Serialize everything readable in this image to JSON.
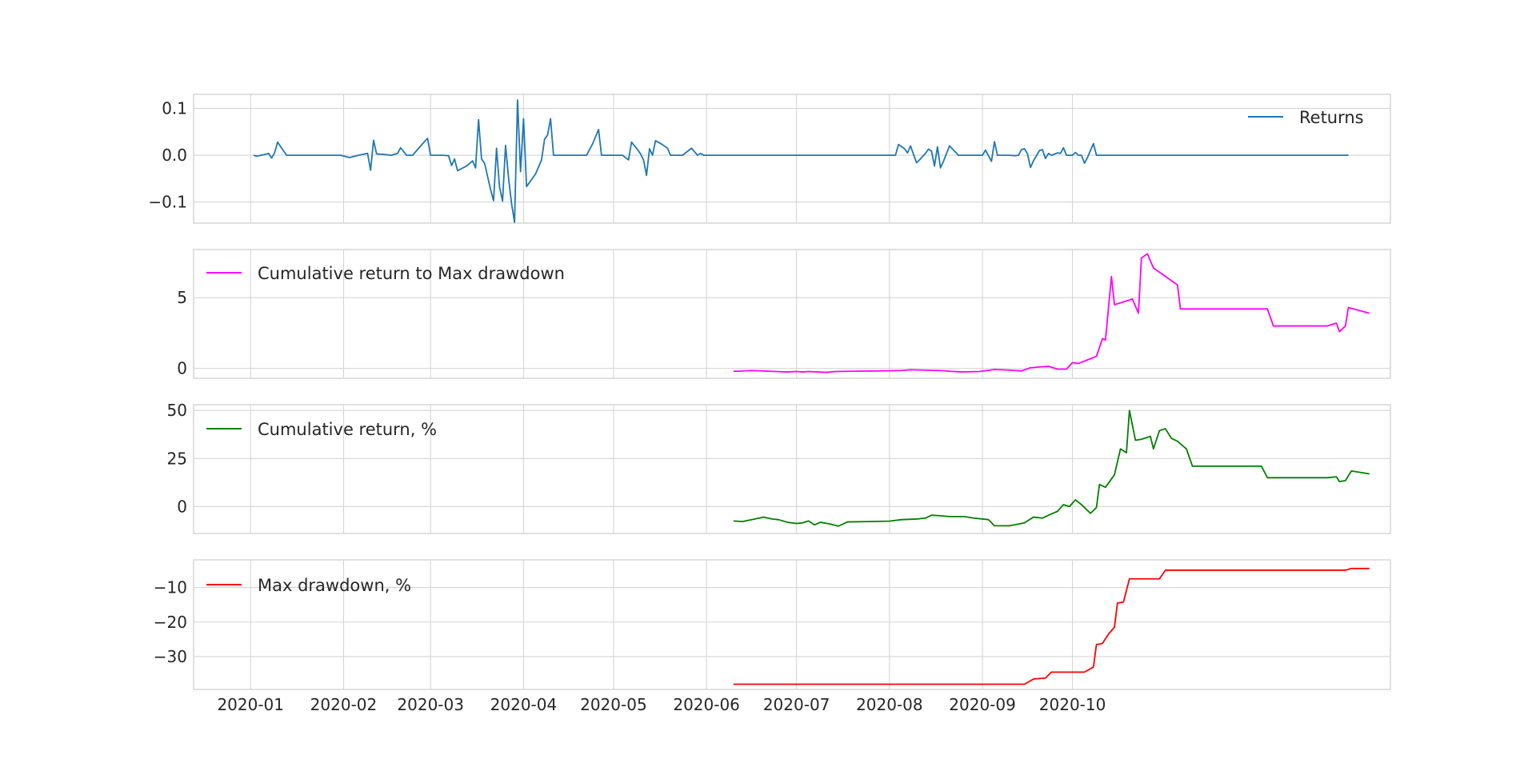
{
  "chart_data": [
    {
      "type": "line",
      "series": [
        {
          "name": "Returns",
          "color": "#1f77b4"
        }
      ],
      "legend": "upper-right",
      "ylim": [
        -0.145,
        0.13
      ],
      "yticks": [
        {
          "value": 0.1,
          "label": "0.1"
        },
        {
          "value": 0.0,
          "label": "0.0"
        },
        {
          "value": -0.1,
          "label": "−0.1"
        }
      ],
      "grid": true,
      "points": [
        [
          "2020-01-02",
          0
        ],
        [
          "2020-01-03",
          -0.002
        ],
        [
          "2020-01-06",
          0.002
        ],
        [
          "2020-01-07",
          0.004
        ],
        [
          "2020-01-08",
          -0.006
        ],
        [
          "2020-01-09",
          0.005
        ],
        [
          "2020-01-10",
          0.028
        ],
        [
          "2020-01-13",
          0
        ],
        [
          "2020-01-20",
          0
        ],
        [
          "2020-01-27",
          0
        ],
        [
          "2020-01-31",
          0
        ],
        [
          "2020-02-03",
          -0.005
        ],
        [
          "2020-02-06",
          0
        ],
        [
          "2020-02-09",
          0.004
        ],
        [
          "2020-02-10",
          -0.032
        ],
        [
          "2020-02-11",
          0.032
        ],
        [
          "2020-02-12",
          0.003
        ],
        [
          "2020-02-14",
          0.002
        ],
        [
          "2020-02-17",
          0
        ],
        [
          "2020-02-19",
          0.004
        ],
        [
          "2020-02-20",
          0.016
        ],
        [
          "2020-02-22",
          0
        ],
        [
          "2020-02-24",
          0
        ],
        [
          "2020-02-27",
          0.022
        ],
        [
          "2020-02-29",
          0.036
        ],
        [
          "2020-03-01",
          0
        ],
        [
          "2020-03-05",
          0
        ],
        [
          "2020-03-07",
          -0.001
        ],
        [
          "2020-03-08",
          -0.022
        ],
        [
          "2020-03-09",
          -0.008
        ],
        [
          "2020-03-10",
          -0.033
        ],
        [
          "2020-03-13",
          -0.023
        ],
        [
          "2020-03-15",
          -0.012
        ],
        [
          "2020-03-16",
          -0.027
        ],
        [
          "2020-03-17",
          0.076
        ],
        [
          "2020-03-18",
          -0.008
        ],
        [
          "2020-03-19",
          -0.017
        ],
        [
          "2020-03-20",
          -0.045
        ],
        [
          "2020-03-21",
          -0.073
        ],
        [
          "2020-03-22",
          -0.097
        ],
        [
          "2020-03-23",
          0.015
        ],
        [
          "2020-03-24",
          -0.068
        ],
        [
          "2020-03-25",
          -0.098
        ],
        [
          "2020-03-26",
          0.021
        ],
        [
          "2020-03-27",
          -0.048
        ],
        [
          "2020-03-28",
          -0.103
        ],
        [
          "2020-03-29",
          -0.143
        ],
        [
          "2020-03-30",
          0.118
        ],
        [
          "2020-03-31",
          -0.035
        ],
        [
          "2020-04-01",
          0.078
        ],
        [
          "2020-04-02",
          -0.067
        ],
        [
          "2020-04-05",
          -0.04
        ],
        [
          "2020-04-07",
          -0.01
        ],
        [
          "2020-04-08",
          0.034
        ],
        [
          "2020-04-09",
          0.043
        ],
        [
          "2020-04-10",
          0.078
        ],
        [
          "2020-04-11",
          0
        ],
        [
          "2020-04-15",
          0
        ],
        [
          "2020-04-20",
          0
        ],
        [
          "2020-04-22",
          0
        ],
        [
          "2020-04-24",
          0.024
        ],
        [
          "2020-04-26",
          0.055
        ],
        [
          "2020-04-27",
          0
        ],
        [
          "2020-05-04",
          0
        ],
        [
          "2020-05-06",
          -0.01
        ],
        [
          "2020-05-07",
          0.028
        ],
        [
          "2020-05-09",
          0.012
        ],
        [
          "2020-05-10",
          0.003
        ],
        [
          "2020-05-11",
          -0.01
        ],
        [
          "2020-05-12",
          -0.043
        ],
        [
          "2020-05-13",
          0.014
        ],
        [
          "2020-05-14",
          0
        ],
        [
          "2020-05-15",
          0.031
        ],
        [
          "2020-05-17",
          0.024
        ],
        [
          "2020-05-19",
          0.015
        ],
        [
          "2020-05-20",
          0
        ],
        [
          "2020-05-24",
          0
        ],
        [
          "2020-05-26",
          0.01
        ],
        [
          "2020-05-27",
          0.015
        ],
        [
          "2020-05-29",
          0
        ],
        [
          "2020-05-30",
          0.004
        ],
        [
          "2020-05-31",
          0
        ],
        [
          "2020-06-30",
          0
        ],
        [
          "2020-07-25",
          0
        ],
        [
          "2020-08-03",
          0
        ],
        [
          "2020-08-04",
          0.023
        ],
        [
          "2020-08-06",
          0.014
        ],
        [
          "2020-08-07",
          0.005
        ],
        [
          "2020-08-08",
          0.02
        ],
        [
          "2020-08-10",
          -0.016
        ],
        [
          "2020-08-11",
          -0.01
        ],
        [
          "2020-08-13",
          0.004
        ],
        [
          "2020-08-14",
          0.013
        ],
        [
          "2020-08-15",
          0.009
        ],
        [
          "2020-08-16",
          -0.023
        ],
        [
          "2020-08-17",
          0.018
        ],
        [
          "2020-08-18",
          -0.027
        ],
        [
          "2020-08-19",
          -0.013
        ],
        [
          "2020-08-21",
          0.02
        ],
        [
          "2020-08-24",
          0
        ],
        [
          "2020-08-29",
          0
        ],
        [
          "2020-09-01",
          0
        ],
        [
          "2020-09-02",
          0.011
        ],
        [
          "2020-09-04",
          -0.013
        ],
        [
          "2020-09-05",
          0.029
        ],
        [
          "2020-09-06",
          0
        ],
        [
          "2020-09-10",
          0
        ],
        [
          "2020-09-12",
          -0.001
        ],
        [
          "2020-09-13",
          0
        ],
        [
          "2020-09-14",
          0.012
        ],
        [
          "2020-09-15",
          0.014
        ],
        [
          "2020-09-16",
          0.003
        ],
        [
          "2020-09-17",
          -0.026
        ],
        [
          "2020-09-18",
          -0.012
        ],
        [
          "2020-09-20",
          0.01
        ],
        [
          "2020-09-21",
          0.012
        ],
        [
          "2020-09-22",
          -0.007
        ],
        [
          "2020-09-23",
          0.004
        ],
        [
          "2020-09-24",
          0
        ],
        [
          "2020-09-26",
          0.005
        ],
        [
          "2020-09-27",
          0.004
        ],
        [
          "2020-09-28",
          0.016
        ],
        [
          "2020-09-29",
          0
        ],
        [
          "2020-10-01",
          0
        ],
        [
          "2020-10-02",
          0.006
        ],
        [
          "2020-10-03",
          0
        ],
        [
          "2020-10-04",
          0
        ],
        [
          "2020-10-05",
          -0.017
        ],
        [
          "2020-10-06",
          -0.005
        ],
        [
          "2020-10-08",
          0.025
        ],
        [
          "2020-10-09",
          0
        ],
        [
          "2020-10-20",
          0
        ],
        [
          "2020-11-20",
          0
        ],
        [
          "2020-12-25",
          0
        ],
        [
          "2021-01-01",
          0
        ]
      ]
    },
    {
      "type": "line",
      "series": [
        {
          "name": "Cumulative return to Max drawdown",
          "color": "#ff00ff"
        }
      ],
      "legend": "upper-left",
      "ylim": [
        -0.7,
        8.4
      ],
      "yticks": [
        {
          "value": 5,
          "label": "5"
        },
        {
          "value": 0,
          "label": "0"
        }
      ],
      "grid": true,
      "points": [
        [
          "2020-06-10",
          -0.2
        ],
        [
          "2020-06-12",
          -0.2
        ],
        [
          "2020-06-16",
          -0.15
        ],
        [
          "2020-06-20",
          -0.18
        ],
        [
          "2020-06-24",
          -0.22
        ],
        [
          "2020-06-28",
          -0.25
        ],
        [
          "2020-07-01",
          -0.22
        ],
        [
          "2020-07-03",
          -0.25
        ],
        [
          "2020-07-05",
          -0.22
        ],
        [
          "2020-07-08",
          -0.25
        ],
        [
          "2020-07-11",
          -0.28
        ],
        [
          "2020-07-14",
          -0.22
        ],
        [
          "2020-07-20",
          -0.2
        ],
        [
          "2020-07-28",
          -0.18
        ],
        [
          "2020-08-05",
          -0.15
        ],
        [
          "2020-08-08",
          -0.1
        ],
        [
          "2020-08-12",
          -0.12
        ],
        [
          "2020-08-18",
          -0.15
        ],
        [
          "2020-08-21",
          -0.2
        ],
        [
          "2020-08-25",
          -0.25
        ],
        [
          "2020-08-31",
          -0.22
        ],
        [
          "2020-09-05",
          -0.08
        ],
        [
          "2020-09-10",
          -0.12
        ],
        [
          "2020-09-14",
          -0.18
        ],
        [
          "2020-09-17",
          0.05
        ],
        [
          "2020-09-20",
          0.1
        ],
        [
          "2020-09-23",
          0.15
        ],
        [
          "2020-09-26",
          -0.05
        ],
        [
          "2020-09-29",
          -0.05
        ],
        [
          "2020-10-01",
          0.4
        ],
        [
          "2020-10-03",
          0.35
        ],
        [
          "2020-10-06",
          0.6
        ],
        [
          "2020-10-09",
          0.85
        ],
        [
          "2020-10-11",
          2.1
        ],
        [
          "2020-10-12",
          2.0
        ],
        [
          "2020-10-14",
          6.5
        ],
        [
          "2020-10-15",
          4.5
        ],
        [
          "2020-10-18",
          4.7
        ],
        [
          "2020-10-21",
          4.9
        ],
        [
          "2020-10-23",
          3.9
        ],
        [
          "2020-10-24",
          7.8
        ],
        [
          "2020-10-26",
          8.1
        ],
        [
          "2020-10-28",
          7.1
        ],
        [
          "2020-11-01",
          6.5
        ],
        [
          "2020-11-05",
          5.9
        ],
        [
          "2020-11-06",
          4.2
        ],
        [
          "2020-11-10",
          4.2
        ],
        [
          "2020-11-30",
          4.2
        ],
        [
          "2020-12-05",
          4.2
        ],
        [
          "2020-12-07",
          3.0
        ],
        [
          "2020-12-15",
          3.0
        ],
        [
          "2020-12-25",
          3.0
        ],
        [
          "2020-12-28",
          3.2
        ],
        [
          "2020-12-29",
          2.6
        ],
        [
          "2020-12-31",
          3.0
        ],
        [
          "2021-01-01",
          4.3
        ],
        [
          "2021-01-08",
          3.9
        ]
      ]
    },
    {
      "type": "line",
      "series": [
        {
          "name": "Cumulative return, %",
          "color": "#008000"
        }
      ],
      "legend": "upper-left",
      "ylim": [
        -14,
        53
      ],
      "yticks": [
        {
          "value": 50,
          "label": "50"
        },
        {
          "value": 25,
          "label": "25"
        },
        {
          "value": 0,
          "label": "0"
        }
      ],
      "grid": true,
      "points": [
        [
          "2020-06-10",
          -7.5
        ],
        [
          "2020-06-13",
          -7.8
        ],
        [
          "2020-06-17",
          -6.5
        ],
        [
          "2020-06-20",
          -5.5
        ],
        [
          "2020-06-23",
          -6.5
        ],
        [
          "2020-06-25",
          -6.8
        ],
        [
          "2020-06-28",
          -8.2
        ],
        [
          "2020-07-01",
          -8.8
        ],
        [
          "2020-07-03",
          -8.5
        ],
        [
          "2020-07-05",
          -7.5
        ],
        [
          "2020-07-07",
          -9.5
        ],
        [
          "2020-07-09",
          -8.2
        ],
        [
          "2020-07-12",
          -9.0
        ],
        [
          "2020-07-15",
          -10.2
        ],
        [
          "2020-07-18",
          -8.0
        ],
        [
          "2020-07-25",
          -7.8
        ],
        [
          "2020-08-01",
          -7.6
        ],
        [
          "2020-08-05",
          -6.8
        ],
        [
          "2020-08-10",
          -6.5
        ],
        [
          "2020-08-13",
          -6.0
        ],
        [
          "2020-08-15",
          -4.5
        ],
        [
          "2020-08-18",
          -4.8
        ],
        [
          "2020-08-21",
          -5.2
        ],
        [
          "2020-08-26",
          -5.2
        ],
        [
          "2020-08-29",
          -6.0
        ],
        [
          "2020-09-03",
          -6.8
        ],
        [
          "2020-09-05",
          -10.0
        ],
        [
          "2020-09-10",
          -10.0
        ],
        [
          "2020-09-15",
          -8.5
        ],
        [
          "2020-09-18",
          -5.5
        ],
        [
          "2020-09-21",
          -6.0
        ],
        [
          "2020-09-23",
          -4.5
        ],
        [
          "2020-09-26",
          -2.5
        ],
        [
          "2020-09-28",
          1.0
        ],
        [
          "2020-09-30",
          0.0
        ],
        [
          "2020-10-02",
          3.5
        ],
        [
          "2020-10-04",
          1.0
        ],
        [
          "2020-10-07",
          -3.5
        ],
        [
          "2020-10-09",
          -0.5
        ],
        [
          "2020-10-10",
          11.5
        ],
        [
          "2020-10-12",
          10.0
        ],
        [
          "2020-10-15",
          16.5
        ],
        [
          "2020-10-17",
          30.0
        ],
        [
          "2020-10-19",
          28.0
        ],
        [
          "2020-10-20",
          50.0
        ],
        [
          "2020-10-22",
          34.5
        ],
        [
          "2020-10-24",
          35.0
        ],
        [
          "2020-10-27",
          36.5
        ],
        [
          "2020-10-28",
          30.0
        ],
        [
          "2020-10-30",
          39.5
        ],
        [
          "2020-11-01",
          40.5
        ],
        [
          "2020-11-03",
          35.5
        ],
        [
          "2020-11-05",
          34.0
        ],
        [
          "2020-11-08",
          30.0
        ],
        [
          "2020-11-10",
          21.0
        ],
        [
          "2020-11-20",
          21.0
        ],
        [
          "2020-11-30",
          21.0
        ],
        [
          "2020-12-03",
          21.0
        ],
        [
          "2020-12-05",
          15.0
        ],
        [
          "2020-12-15",
          15.0
        ],
        [
          "2020-12-25",
          15.0
        ],
        [
          "2020-12-28",
          15.5
        ],
        [
          "2020-12-29",
          13.0
        ],
        [
          "2020-12-31",
          13.5
        ],
        [
          "2021-01-02",
          18.5
        ],
        [
          "2021-01-08",
          17.0
        ]
      ]
    },
    {
      "type": "line",
      "series": [
        {
          "name": "Max drawdown, %",
          "color": "#ff0000"
        }
      ],
      "legend": "upper-left",
      "ylim": [
        -39.5,
        -2.0
      ],
      "yticks": [
        {
          "value": -10,
          "label": "−10"
        },
        {
          "value": -20,
          "label": "−20"
        },
        {
          "value": -30,
          "label": "−30"
        }
      ],
      "grid": true,
      "xticks": [
        {
          "value": "2020-01-01",
          "label": "2020-01"
        },
        {
          "value": "2020-02-01",
          "label": "2020-02"
        },
        {
          "value": "2020-03-01",
          "label": "2020-03"
        },
        {
          "value": "2020-04-01",
          "label": "2020-04"
        },
        {
          "value": "2020-05-01",
          "label": "2020-05"
        },
        {
          "value": "2020-06-01",
          "label": "2020-06"
        },
        {
          "value": "2020-07-01",
          "label": "2020-07"
        },
        {
          "value": "2020-08-01",
          "label": "2020-08"
        },
        {
          "value": "2020-09-01",
          "label": "2020-09"
        },
        {
          "value": "2020-10-01",
          "label": "2020-10"
        }
      ],
      "xlim": [
        "2019-12-13",
        "2021-01-15"
      ],
      "points": [
        [
          "2020-06-10",
          -38.0
        ],
        [
          "2020-09-15",
          -38.0
        ],
        [
          "2020-09-18",
          -36.5
        ],
        [
          "2020-09-22",
          -36.2
        ],
        [
          "2020-09-24",
          -34.5
        ],
        [
          "2020-09-30",
          -34.5
        ],
        [
          "2020-10-05",
          -34.5
        ],
        [
          "2020-10-08",
          -33.0
        ],
        [
          "2020-10-09",
          -26.5
        ],
        [
          "2020-10-11",
          -26.2
        ],
        [
          "2020-10-13",
          -23.5
        ],
        [
          "2020-10-15",
          -21.5
        ],
        [
          "2020-10-16",
          -14.5
        ],
        [
          "2020-10-18",
          -14.2
        ],
        [
          "2020-10-20",
          -7.5
        ],
        [
          "2020-10-27",
          -7.5
        ],
        [
          "2020-10-30",
          -7.5
        ],
        [
          "2020-11-01",
          -5.0
        ],
        [
          "2020-11-15",
          -5.0
        ],
        [
          "2020-12-31",
          -5.0
        ],
        [
          "2021-01-02",
          -4.5
        ],
        [
          "2021-01-08",
          -4.5
        ]
      ]
    }
  ]
}
